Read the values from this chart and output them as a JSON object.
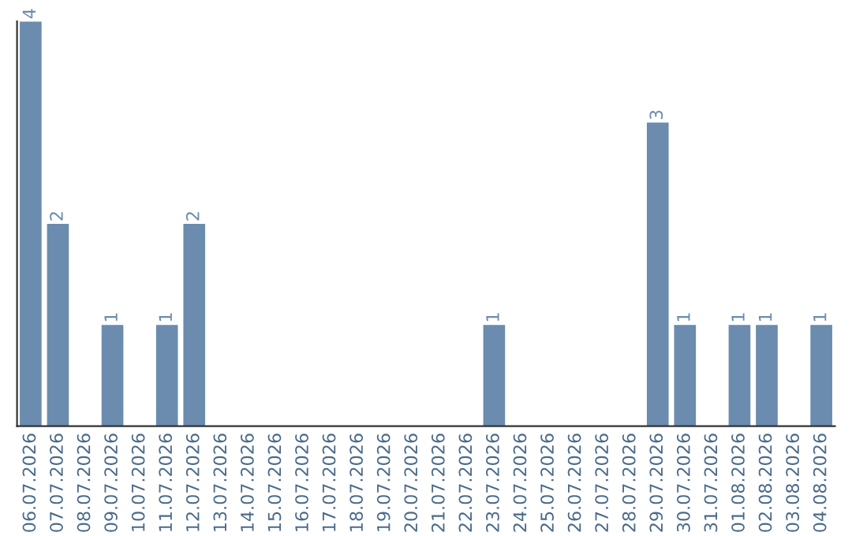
{
  "chart_data": {
    "type": "bar",
    "categories": [
      "06.07.2026",
      "07.07.2026",
      "08.07.2026",
      "09.07.2026",
      "10.07.2026",
      "11.07.2026",
      "12.07.2026",
      "13.07.2026",
      "14.07.2026",
      "15.07.2026",
      "16.07.2026",
      "17.07.2026",
      "18.07.2026",
      "19.07.2026",
      "20.07.2026",
      "21.07.2026",
      "22.07.2026",
      "23.07.2026",
      "24.07.2026",
      "25.07.2026",
      "26.07.2026",
      "27.07.2026",
      "28.07.2026",
      "29.07.2026",
      "30.07.2026",
      "31.07.2026",
      "01.08.2026",
      "02.08.2026",
      "03.08.2026",
      "04.08.2026"
    ],
    "values": [
      4,
      2,
      0,
      1,
      0,
      1,
      2,
      0,
      0,
      0,
      0,
      0,
      0,
      0,
      0,
      0,
      0,
      1,
      0,
      0,
      0,
      0,
      0,
      3,
      1,
      0,
      1,
      1,
      0,
      1
    ],
    "value_labels": [
      "4",
      "2",
      null,
      "1",
      null,
      "1",
      "2",
      null,
      null,
      null,
      null,
      null,
      null,
      null,
      null,
      null,
      null,
      "1",
      null,
      null,
      null,
      null,
      null,
      "3",
      "1",
      null,
      "1",
      "1",
      null,
      "1"
    ],
    "color": "#6b8cae",
    "tick_labels": "x",
    "grid": false
  }
}
